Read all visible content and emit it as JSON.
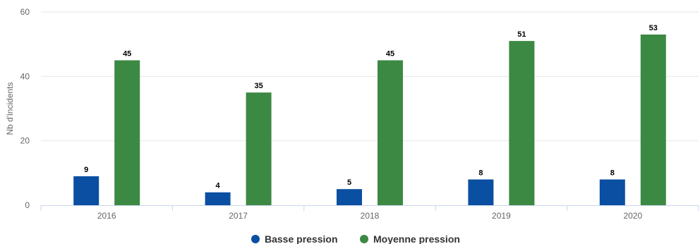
{
  "chart_data": {
    "type": "bar",
    "title": "",
    "xlabel": "",
    "ylabel": "Nb d'incidents",
    "ylim": [
      0,
      60
    ],
    "yticks": [
      "0",
      "20",
      "40",
      "60"
    ],
    "grid": true,
    "legend_position": "bottom",
    "categories": [
      "2016",
      "2017",
      "2018",
      "2019",
      "2020"
    ],
    "series": [
      {
        "name": "Basse pression",
        "color": "#0a4fa1",
        "values": [
          9,
          4,
          5,
          8,
          8
        ]
      },
      {
        "name": "Moyenne pression",
        "color": "#3c8943",
        "values": [
          45,
          35,
          45,
          51,
          53
        ]
      }
    ]
  }
}
